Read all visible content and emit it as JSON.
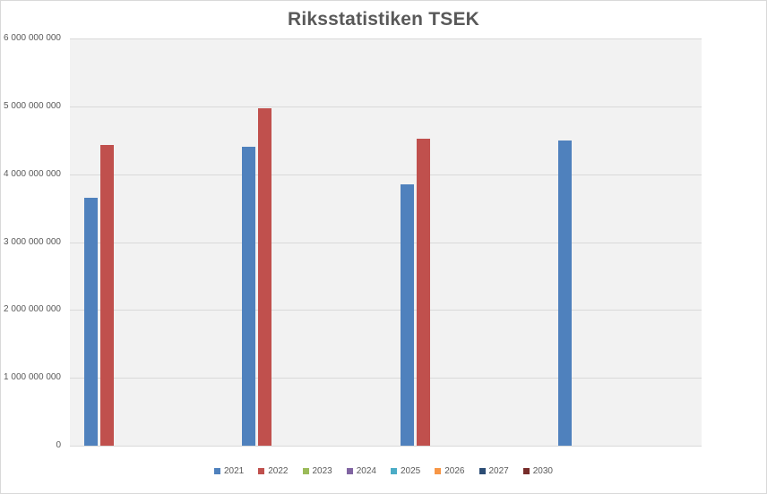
{
  "chart_data": {
    "type": "bar",
    "title": "Riksstatistiken TSEK",
    "xlabel": "",
    "ylabel": "",
    "ylim": [
      0,
      6000000000
    ],
    "yticks": [
      "0",
      "1 000 000 000",
      "2 000 000 000",
      "3 000 000 000",
      "4 000 000 000",
      "5 000 000 000",
      "6 000 000 000"
    ],
    "grid": true,
    "legend_position": "bottom",
    "categories": [
      "",
      "",
      "",
      ""
    ],
    "series": [
      {
        "name": "2021",
        "color": "#4f81bd",
        "values": [
          3650000000,
          4400000000,
          3850000000,
          4500000000
        ]
      },
      {
        "name": "2022",
        "color": "#c0504d",
        "values": [
          4430000000,
          4970000000,
          4520000000,
          null
        ]
      },
      {
        "name": "2023",
        "color": "#9bbb59",
        "values": [
          null,
          null,
          null,
          null
        ]
      },
      {
        "name": "2024",
        "color": "#8064a2",
        "values": [
          null,
          null,
          null,
          null
        ]
      },
      {
        "name": "2025",
        "color": "#4bacc6",
        "values": [
          null,
          null,
          null,
          null
        ]
      },
      {
        "name": "2026",
        "color": "#f79646",
        "values": [
          null,
          null,
          null,
          null
        ]
      },
      {
        "name": "2027",
        "color": "#2c4d75",
        "values": [
          null,
          null,
          null,
          null
        ]
      },
      {
        "name": "2030",
        "color": "#772c2a",
        "values": [
          null,
          null,
          null,
          null
        ]
      }
    ]
  }
}
